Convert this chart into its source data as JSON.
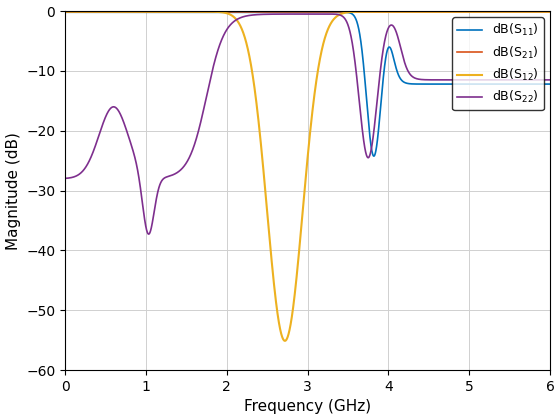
{
  "title": "",
  "xlabel": "Frequency (GHz)",
  "ylabel": "Magnitude (dB)",
  "xlim": [
    0,
    6
  ],
  "ylim": [
    -60,
    0
  ],
  "yticks": [
    0,
    -10,
    -20,
    -30,
    -40,
    -50,
    -60
  ],
  "xticks": [
    0,
    1,
    2,
    3,
    4,
    5,
    6
  ],
  "colors": {
    "S11": "#0072BD",
    "S21": "#D95319",
    "S12": "#EDB120",
    "S22": "#7E2F8E"
  },
  "background_color": "#FFFFFF",
  "grid_color": "#D0D0D0"
}
